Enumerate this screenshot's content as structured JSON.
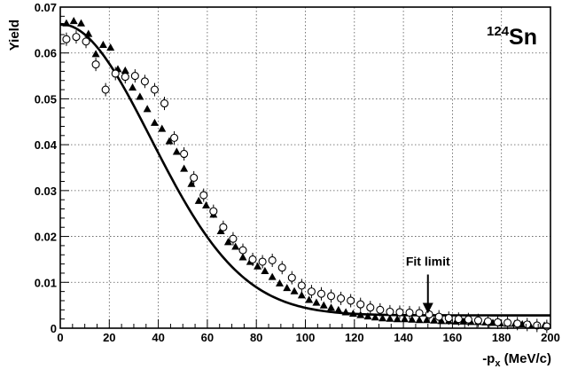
{
  "chart_data": {
    "type": "scatter",
    "title": "",
    "label_mass": "124",
    "label_element": "Sn",
    "xlabel_prefix": "-p",
    "xlabel_sub": "x",
    "xlabel_suffix": " (MeV/c)",
    "ylabel": "Yield",
    "xlim": [
      0,
      200
    ],
    "ylim": [
      0,
      0.07
    ],
    "xticks": [
      0,
      20,
      40,
      60,
      80,
      100,
      120,
      140,
      160,
      180,
      200
    ],
    "yticks": [
      0,
      0.01,
      0.02,
      0.03,
      0.04,
      0.05,
      0.06,
      0.07
    ],
    "ytick_labels": [
      "0",
      "0.01",
      "0.02",
      "0.03",
      "0.04",
      "0.05",
      "0.06",
      "0.07"
    ],
    "grid": true,
    "annotation": {
      "text": "Fit limit",
      "x": 150,
      "y_tip": 0.0032,
      "y_tail": 0.0117
    },
    "series": [
      {
        "marker": "triangle",
        "x": [
          2.5,
          5.5,
          8.5,
          11.5,
          14.5,
          17.5,
          20.5,
          23.5,
          26.5,
          29.5,
          32.5,
          35.5,
          38.5,
          41.5,
          44.5,
          47.5,
          50.5,
          53.5,
          56.5,
          59.5,
          62.5,
          65.5,
          68.5,
          71.5,
          74.5,
          77.5,
          80.5,
          83.5,
          86.5,
          89.5,
          92.5,
          95.5,
          98.5,
          101.5,
          104.5,
          107.5,
          110.5,
          113.5,
          116.5,
          119.5,
          122.5,
          125.5,
          128.5,
          131.5,
          134.5,
          137.5,
          140.5,
          143.5,
          146.5,
          149.5,
          152.5,
          155.5,
          158.5,
          161.5,
          164.5,
          167.5,
          170.5,
          173.5,
          176.5,
          179.5,
          182.5,
          185.5,
          188.5,
          191.5,
          194.5,
          197.5
        ],
        "y": [
          0.0665,
          0.067,
          0.0665,
          0.0642,
          0.0598,
          0.0618,
          0.0612,
          0.0565,
          0.0562,
          0.0525,
          0.0505,
          0.0478,
          0.0448,
          0.0435,
          0.0408,
          0.0385,
          0.0348,
          0.0315,
          0.0278,
          0.0268,
          0.0248,
          0.0212,
          0.0188,
          0.0178,
          0.0155,
          0.0145,
          0.0135,
          0.0125,
          0.0112,
          0.0098,
          0.0088,
          0.0081,
          0.0072,
          0.0062,
          0.0056,
          0.005,
          0.0045,
          0.004,
          0.0035,
          0.0032,
          0.0029,
          0.0026,
          0.0024,
          0.0022,
          0.0021,
          0.002,
          0.002,
          0.0019,
          0.0018,
          0.0018,
          0.0017,
          0.0016,
          0.0016,
          0.0015,
          0.0015,
          0.0014,
          0.0014,
          0.0013,
          0.0012,
          0.0011,
          0.001,
          0.001,
          0.0009,
          0.0008,
          0.0007,
          0.0006
        ]
      },
      {
        "marker": "open-circle",
        "x": [
          2.5,
          6.5,
          10.5,
          14.5,
          18.5,
          22.5,
          26.5,
          30.5,
          34.5,
          38.5,
          42.5,
          46.5,
          50.5,
          54.5,
          58.5,
          62.5,
          66.5,
          70.5,
          74.5,
          78.5,
          82.5,
          86.5,
          90.5,
          94.5,
          98.5,
          102.5,
          106.5,
          110.5,
          114.5,
          118.5,
          122.5,
          126.5,
          130.5,
          134.5,
          138.5,
          142.5,
          146.5,
          150.5,
          154.5,
          158.5,
          162.5,
          166.5,
          170.5,
          174.5,
          178.5,
          182.5,
          186.5,
          190.5,
          194.5,
          198.5
        ],
        "y": [
          0.063,
          0.0635,
          0.0625,
          0.0575,
          0.052,
          0.0555,
          0.0548,
          0.055,
          0.0538,
          0.052,
          0.049,
          0.0415,
          0.038,
          0.0328,
          0.029,
          0.0255,
          0.022,
          0.0195,
          0.017,
          0.015,
          0.0145,
          0.0148,
          0.0132,
          0.011,
          0.0093,
          0.008,
          0.0075,
          0.007,
          0.0065,
          0.006,
          0.0052,
          0.0045,
          0.004,
          0.0036,
          0.0035,
          0.0034,
          0.0033,
          0.003,
          0.0025,
          0.0022,
          0.002,
          0.0019,
          0.0017,
          0.0015,
          0.0013,
          0.0012,
          0.001,
          0.0008,
          0.0006,
          0.0004
        ]
      }
    ],
    "fit_curve": {
      "form": "A*exp(-x^2/(2*sigma^2)) + c",
      "A": 0.0635,
      "sigma": 37,
      "c": 0.0028
    }
  }
}
